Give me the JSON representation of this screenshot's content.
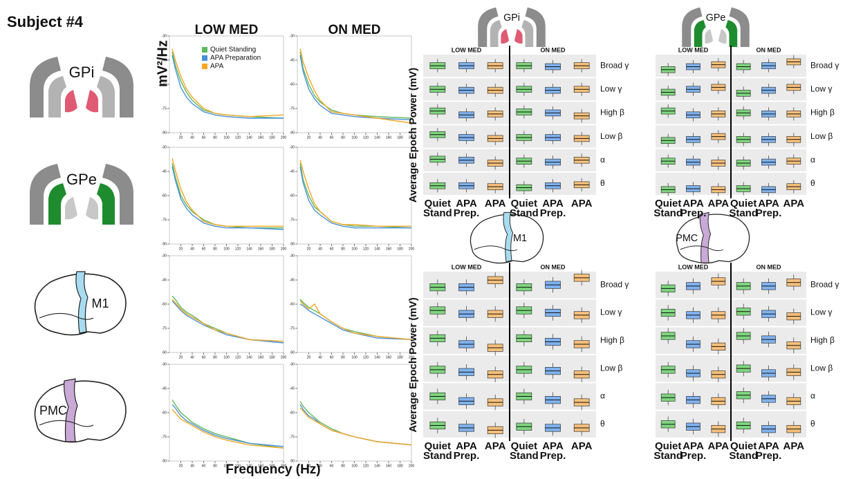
{
  "subject_title": "Subject #4",
  "regions": [
    "GPi",
    "GPe",
    "M1",
    "PMC"
  ],
  "chart_data": [
    {
      "type": "line",
      "y_label": "mV²/Hz",
      "x_label": "Frequency (Hz)",
      "columns": [
        "LOW MED",
        "ON MED"
      ],
      "x": [
        5,
        10,
        20,
        30,
        40,
        60,
        80,
        100,
        140,
        200
      ],
      "xlim": [
        0,
        200
      ],
      "xticks": [
        20,
        40,
        60,
        80,
        100,
        120,
        140,
        160,
        180,
        200
      ],
      "ylim": [
        -90,
        -30
      ],
      "yticks": [
        -30,
        -45,
        -60,
        -75,
        -90
      ],
      "series": [
        {
          "name": "Quiet Standing",
          "color": "#5cb85c"
        },
        {
          "name": "APA Preparation",
          "color": "#4a90d9"
        },
        {
          "name": "APA",
          "color": "#f5a623"
        }
      ],
      "panels": [
        [
          [
            [
              -40,
              -48,
              -58,
              -65,
              -70,
              -76,
              -78,
              -79,
              -80,
              -81
            ],
            [
              -42,
              -50,
              -62,
              -68,
              -72,
              -77,
              -79,
              -80,
              -81,
              -81
            ],
            [
              -38,
              -45,
              -55,
              -63,
              -68,
              -75,
              -78,
              -79,
              -80,
              -79
            ]
          ],
          [
            [
              -40,
              -50,
              -60,
              -67,
              -71,
              -76,
              -78,
              -79,
              -80,
              -81
            ],
            [
              -42,
              -52,
              -63,
              -69,
              -73,
              -78,
              -79,
              -80,
              -81,
              -82
            ],
            [
              -38,
              -46,
              -56,
              -64,
              -70,
              -77,
              -78,
              -79,
              -81,
              -84
            ]
          ]
        ],
        [
          [
            [
              -40,
              -48,
              -60,
              -66,
              -70,
              -75,
              -78,
              -79,
              -80,
              -80
            ],
            [
              -42,
              -50,
              -62,
              -68,
              -72,
              -77,
              -79,
              -80,
              -80,
              -81
            ],
            [
              -37,
              -44,
              -56,
              -64,
              -69,
              -76,
              -78,
              -79,
              -79,
              -79
            ]
          ],
          [
            [
              -40,
              -50,
              -60,
              -67,
              -70,
              -76,
              -78,
              -79,
              -79,
              -80
            ],
            [
              -42,
              -52,
              -63,
              -69,
              -72,
              -77,
              -79,
              -80,
              -80,
              -80
            ],
            [
              -38,
              -45,
              -56,
              -65,
              -70,
              -76,
              -78,
              -78,
              -79,
              -79
            ]
          ]
        ],
        [
          [
            [
              -55,
              -57,
              -62,
              -65,
              -67,
              -72,
              -75,
              -78,
              -82,
              -84
            ],
            [
              -58,
              -60,
              -64,
              -67,
              -69,
              -73,
              -76,
              -79,
              -82,
              -84
            ],
            [
              -57,
              -59,
              -63,
              -66,
              -68,
              -72,
              -76,
              -78,
              -82,
              -83
            ]
          ],
          [
            [
              -57,
              -59,
              -62,
              -64,
              -66,
              -71,
              -75,
              -77,
              -80,
              -82
            ],
            [
              -60,
              -61,
              -64,
              -66,
              -68,
              -72,
              -76,
              -78,
              -81,
              -82
            ],
            [
              -58,
              -60,
              -63,
              -60,
              -66,
              -71,
              -75,
              -78,
              -80,
              -82
            ]
          ]
        ],
        [
          [
            [
              -52,
              -55,
              -60,
              -63,
              -66,
              -70,
              -73,
              -75,
              -79,
              -82
            ],
            [
              -55,
              -57,
              -62,
              -65,
              -67,
              -71,
              -74,
              -76,
              -79,
              -81
            ],
            [
              -58,
              -60,
              -64,
              -66,
              -68,
              -72,
              -75,
              -77,
              -80,
              -82
            ]
          ],
          [
            [
              -53,
              -56,
              -60,
              -63,
              -66,
              -70,
              -73,
              -75,
              -78,
              -80
            ],
            [
              -55,
              -58,
              -62,
              -64,
              -67,
              -71,
              -73,
              -75,
              -78,
              -80
            ],
            [
              -57,
              -59,
              -63,
              -65,
              -67,
              -71,
              -73,
              -75,
              -78,
              -80
            ]
          ]
        ]
      ]
    },
    {
      "type": "box",
      "y_label": "Average Epoch Power (mV)",
      "columns": [
        "LOW MED",
        "ON MED"
      ],
      "bands": [
        "Broad γ",
        "Low γ",
        "High β",
        "Low β",
        "α",
        "θ"
      ],
      "conditions": [
        {
          "label": "Quiet Stand",
          "color": "#7ed67e"
        },
        {
          "label": "APA Prep.",
          "color": "#7fb2ef"
        },
        {
          "label": "APA",
          "color": "#f8c07a"
        }
      ],
      "ylim": [
        0,
        1
      ],
      "medians": [
        [
          [
            [
              0.5,
              0.5,
              0.5
            ],
            [
              0.5,
              0.45,
              0.45
            ],
            [
              0.6,
              0.4,
              0.45
            ],
            [
              0.6,
              0.45,
              0.4
            ],
            [
              0.55,
              0.5,
              0.35
            ],
            [
              0.4,
              0.4,
              0.35
            ]
          ],
          [
            [
              0.5,
              0.45,
              0.5
            ],
            [
              0.5,
              0.45,
              0.5
            ],
            [
              0.55,
              0.5,
              0.35
            ],
            [
              0.45,
              0.45,
              0.4
            ],
            [
              0.45,
              0.4,
              0.5
            ],
            [
              0.3,
              0.4,
              0.45
            ]
          ]
        ],
        [
          [
            [
              0.3,
              0.45,
              0.55
            ],
            [
              0.35,
              0.5,
              0.6
            ],
            [
              0.6,
              0.4,
              0.45
            ],
            [
              0.3,
              0.35,
              0.5
            ],
            [
              0.45,
              0.4,
              0.35
            ],
            [
              0.2,
              0.25,
              0.2
            ]
          ],
          [
            [
              0.45,
              0.5,
              0.7
            ],
            [
              0.3,
              0.45,
              0.6
            ],
            [
              0.5,
              0.45,
              0.45
            ],
            [
              0.35,
              0.35,
              0.35
            ],
            [
              0.35,
              0.4,
              0.45
            ],
            [
              0.25,
              0.2,
              0.35
            ]
          ]
        ],
        [
          [
            [
              0.4,
              0.4,
              0.7
            ],
            [
              0.6,
              0.45,
              0.45
            ],
            [
              0.6,
              0.35,
              0.2
            ],
            [
              0.45,
              0.35,
              0.25
            ],
            [
              0.5,
              0.3,
              0.25
            ],
            [
              0.45,
              0.35,
              0.25
            ]
          ],
          [
            [
              0.4,
              0.5,
              0.8
            ],
            [
              0.6,
              0.5,
              0.4
            ],
            [
              0.6,
              0.45,
              0.35
            ],
            [
              0.45,
              0.4,
              0.25
            ],
            [
              0.5,
              0.35,
              0.25
            ],
            [
              0.4,
              0.35,
              0.35
            ]
          ]
        ],
        [
          [
            [
              0.35,
              0.45,
              0.65
            ],
            [
              0.5,
              0.4,
              0.4
            ],
            [
              0.7,
              0.35,
              0.25
            ],
            [
              0.45,
              0.3,
              0.25
            ],
            [
              0.45,
              0.35,
              0.3
            ],
            [
              0.5,
              0.4,
              0.3
            ]
          ],
          [
            [
              0.45,
              0.45,
              0.6
            ],
            [
              0.55,
              0.45,
              0.35
            ],
            [
              0.7,
              0.55,
              0.3
            ],
            [
              0.5,
              0.3,
              0.35
            ],
            [
              0.55,
              0.4,
              0.3
            ],
            [
              0.45,
              0.3,
              0.3
            ]
          ]
        ]
      ]
    }
  ]
}
